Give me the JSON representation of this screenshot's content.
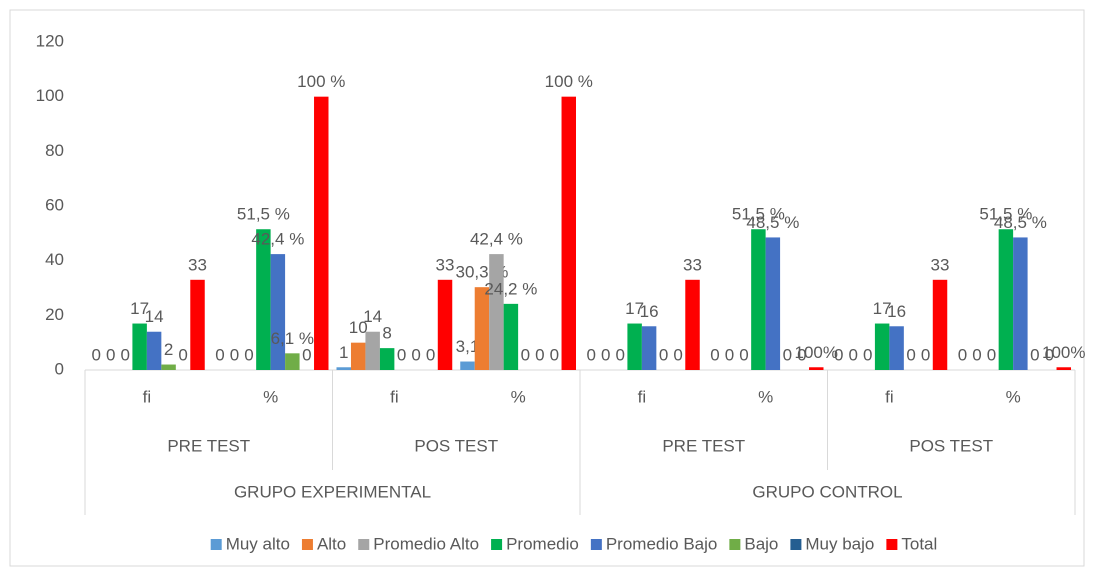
{
  "chart_data": {
    "type": "bar",
    "categories": [
      "fi",
      "%",
      "fi",
      "%",
      "fi",
      "%",
      "fi",
      "%"
    ],
    "tests": [
      "PRE TEST",
      "POS TEST",
      "PRE TEST",
      "POS TEST"
    ],
    "groups": [
      "GRUPO EXPERIMENTAL",
      "GRUPO CONTROL"
    ],
    "ylim": [
      0,
      120
    ],
    "yticks": [
      0,
      20,
      40,
      60,
      80,
      100,
      120
    ],
    "grid": false,
    "legend": "bottom",
    "series": [
      {
        "name": "Muy alto",
        "color": "#5b9bd5",
        "values": [
          0,
          0,
          1,
          3.1,
          0,
          0,
          0,
          0
        ],
        "value_labels": [
          "0",
          "0",
          "1",
          "3,1",
          "0",
          "0",
          "0",
          "0"
        ]
      },
      {
        "name": "Alto",
        "color": "#ed7d31",
        "values": [
          0,
          0,
          10,
          30.3,
          0,
          0,
          0,
          0
        ],
        "value_labels": [
          "0",
          "0",
          "10",
          "30,3 %",
          "0",
          "0",
          "0",
          "0"
        ]
      },
      {
        "name": "Promedio Alto",
        "color": "#a5a5a5",
        "values": [
          0,
          0,
          14,
          42.4,
          0,
          0,
          0,
          0
        ],
        "value_labels": [
          "0",
          "0",
          "14",
          "42,4 %",
          "0",
          "0",
          "0",
          "0"
        ]
      },
      {
        "name": "Promedio",
        "color": "#00b050",
        "values": [
          17,
          51.5,
          8,
          24.2,
          17,
          51.5,
          17,
          51.5
        ],
        "value_labels": [
          "17",
          "51,5 %",
          "8",
          "24,2 %",
          "17",
          "51,5 %",
          "17",
          "51,5 %"
        ]
      },
      {
        "name": "Promedio Bajo",
        "color": "#4472c4",
        "values": [
          14,
          42.4,
          0,
          0,
          16,
          48.5,
          16,
          48.5
        ],
        "value_labels": [
          "14",
          "42,4 %",
          "0",
          "0",
          "16",
          "48,5 %",
          "16",
          "48,5 %"
        ]
      },
      {
        "name": "Bajo",
        "color": "#70ad47",
        "values": [
          2,
          6.1,
          0,
          0,
          0,
          0,
          0,
          0
        ],
        "value_labels": [
          "2",
          "6,1 %",
          "0",
          "0",
          "0",
          "0",
          "0",
          "0"
        ]
      },
      {
        "name": "Muy bajo",
        "color": "#255e91",
        "values": [
          0,
          0,
          0,
          0,
          0,
          0,
          0,
          0
        ],
        "value_labels": [
          "0",
          "0",
          "0",
          "0",
          "0",
          "0",
          "0",
          "0"
        ]
      },
      {
        "name": "Total",
        "color": "#ff0000",
        "values": [
          33,
          100,
          33,
          100,
          33,
          1,
          33,
          1
        ],
        "value_labels": [
          "33",
          "100 %",
          "33",
          "100 %",
          "33",
          "100%",
          "33",
          "100%"
        ]
      }
    ]
  }
}
